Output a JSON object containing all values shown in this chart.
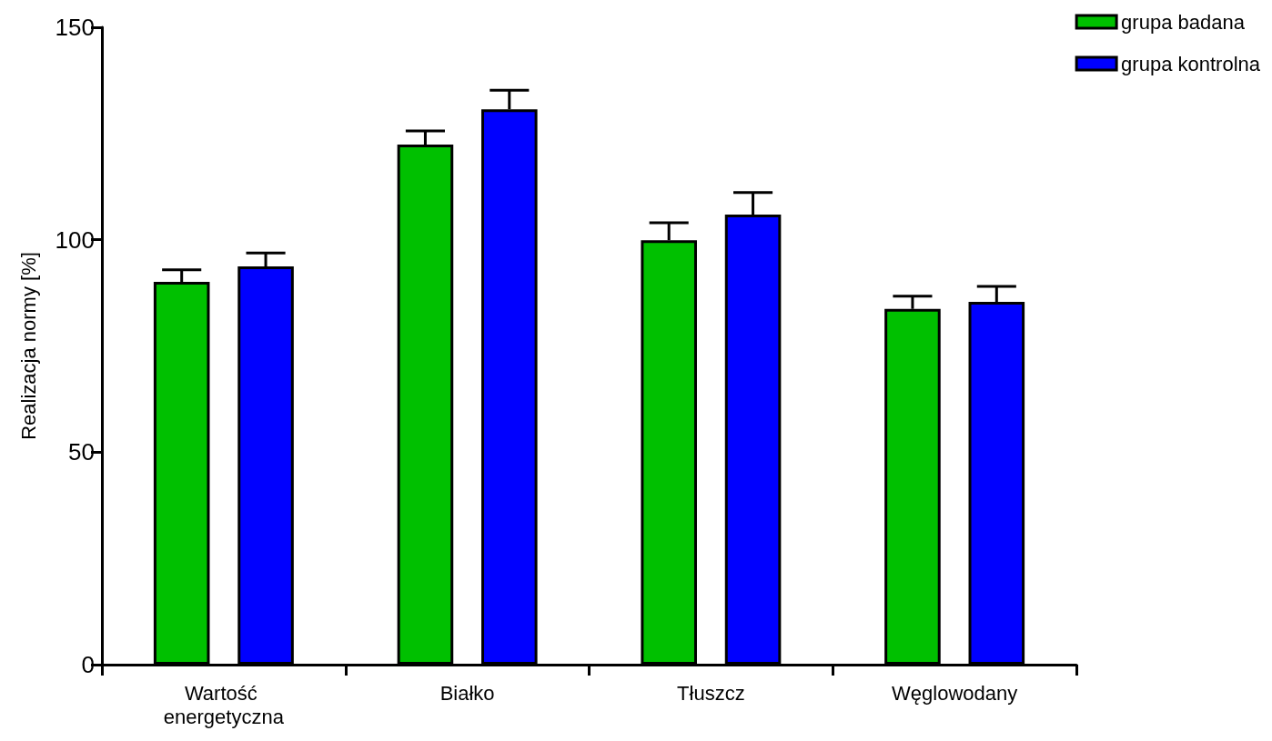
{
  "chart_data": {
    "type": "bar",
    "ylabel": "Realizacja normy [%]",
    "categories": [
      "Wartość energetyczna",
      "Białko",
      "Tłuszcz",
      "Węglowodany"
    ],
    "series": [
      {
        "name": "grupa badana",
        "color": "#00c000",
        "values": [
          90.1,
          122.4,
          99.9,
          83.7
        ],
        "errors": [
          [
            90.1,
            92.9
          ],
          [
            122.4,
            125.6
          ],
          [
            99.9,
            104
          ],
          [
            83.7,
            86.7
          ]
        ]
      },
      {
        "name": "grupa kontrolna",
        "color": "#0000ff",
        "values": [
          93.7,
          130.7,
          105.9,
          85.4
        ],
        "errors": [
          [
            93.7,
            96.9
          ],
          [
            130.7,
            135.2
          ],
          [
            105.9,
            111.1
          ],
          [
            85.4,
            89
          ]
        ]
      }
    ],
    "ylim": [
      0,
      150
    ],
    "yticks": [
      0,
      50,
      100,
      150
    ],
    "grid": false,
    "legend": "top right"
  }
}
